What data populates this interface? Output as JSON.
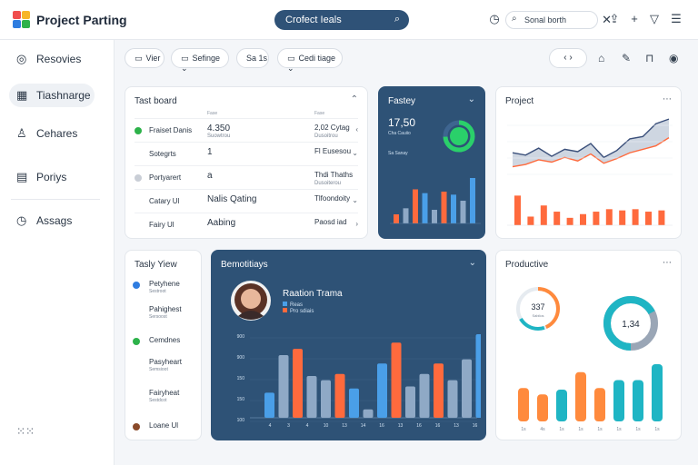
{
  "header": {
    "app_title": "Project Parting",
    "search_label": "Crofect Ieals",
    "search_pill": "Sonal borth"
  },
  "sidebar": {
    "items": [
      {
        "label": "Resovies",
        "icon": "compass-icon"
      },
      {
        "label": "Tiashnarge",
        "icon": "grid-icon"
      },
      {
        "label": "Cehares",
        "icon": "user-icon"
      },
      {
        "label": "Poriys",
        "icon": "table-icon"
      },
      {
        "label": "Assags",
        "icon": "clock-icon"
      }
    ]
  },
  "toolbar": {
    "view_label": "Vier",
    "settings_label": "Sefinge",
    "page_label": "Sa 1s",
    "code_label": "Cedi tiage",
    "nav_label": "‹ ›"
  },
  "task_board": {
    "title": "Tast board",
    "col_heads": [
      "Fase",
      "Fase"
    ],
    "rows": [
      {
        "dot": "#2db24a",
        "name": "Fraiset Danis",
        "v": "4.350",
        "v_sub": "Suowtrou",
        "r": "2,02 Cytag",
        "r_sub": "Dusoitrou",
        "end": "‹"
      },
      {
        "dot": "",
        "name": "Sotegrts",
        "v": "1",
        "v_sub": "",
        "r": "Fl Eusesou",
        "r_sub": "",
        "end": "⌄"
      },
      {
        "dot": "#c9ced6",
        "name": "Portyarert",
        "v": "a",
        "v_sub": "",
        "r": "Thdi Thaths",
        "r_sub": "Dusoiterou",
        "end": ""
      },
      {
        "dot": "",
        "name": "Catary Ul",
        "v": "Nalis Qating",
        "v_sub": "",
        "r": "Tlfoondoity",
        "r_sub": "",
        "end": "⌄"
      },
      {
        "dot": "",
        "name": "Fairy Ul",
        "v": "Aabing",
        "v_sub": "",
        "r": "Paosd iad",
        "r_sub": "",
        "end": "›"
      }
    ]
  },
  "fastey": {
    "title": "Fastey",
    "value": "17,50",
    "sub1": "Cha Cauiio",
    "sub2": "Sa Sanay",
    "bars": [
      {
        "v": 12,
        "c": "#ff6a3d"
      },
      {
        "v": 20,
        "c": "#8fa9c6"
      },
      {
        "v": 45,
        "c": "#ff6a3d"
      },
      {
        "v": 40,
        "c": "#4a9fe8"
      },
      {
        "v": 18,
        "c": "#8fa9c6"
      },
      {
        "v": 42,
        "c": "#ff6a3d"
      },
      {
        "v": 38,
        "c": "#4a9fe8"
      },
      {
        "v": 30,
        "c": "#8fa9c6"
      },
      {
        "v": 60,
        "c": "#4a9fe8"
      }
    ]
  },
  "project": {
    "title": "Project",
    "line_a": [
      34,
      30,
      42,
      28,
      40,
      36,
      50,
      26,
      38,
      58,
      62,
      84,
      92
    ],
    "line_b": [
      10,
      14,
      22,
      18,
      26,
      20,
      32,
      16,
      24,
      34,
      40,
      46,
      60
    ],
    "bars": [
      48,
      14,
      32,
      22,
      12,
      18,
      22,
      26,
      24,
      26,
      22,
      24
    ]
  },
  "task_view": {
    "title": "Tasly Yiew",
    "items": [
      {
        "label": "Petyhene",
        "sub": "Sestroot",
        "dot": "#2f7de0"
      },
      {
        "label": "Pahighest",
        "sub": "Sersoost",
        "dot": ""
      },
      {
        "label": "Cemdnes",
        "sub": "",
        "dot": "#2db24a"
      },
      {
        "label": "Pasyheart",
        "sub": "Semsioot",
        "dot": ""
      },
      {
        "label": "Fairyheat",
        "sub": "Sestdcot",
        "dot": ""
      },
      {
        "label": "Loane Ul",
        "sub": "",
        "dot": "#8a4a2a"
      }
    ]
  },
  "benchmark": {
    "title": "Bemotitiays",
    "person": "Raation Trama",
    "legend": [
      "Reas",
      "Pro sdiais"
    ],
    "yticks": [
      "900",
      "900",
      "150",
      "150",
      "100"
    ],
    "xticks": [
      "4",
      "3",
      "4",
      "10",
      "13",
      "14",
      "16",
      "13",
      "16",
      "16",
      "13",
      "16"
    ],
    "bars": [
      {
        "v": 120,
        "c": "#4a9fe8"
      },
      {
        "v": 300,
        "c": "#8fa9c6"
      },
      {
        "v": 330,
        "c": "#ff6a3d"
      },
      {
        "v": 200,
        "c": "#8fa9c6"
      },
      {
        "v": 180,
        "c": "#8fa9c6"
      },
      {
        "v": 210,
        "c": "#ff6a3d"
      },
      {
        "v": 140,
        "c": "#4a9fe8"
      },
      {
        "v": 40,
        "c": "#8fa9c6"
      },
      {
        "v": 260,
        "c": "#4a9fe8"
      },
      {
        "v": 360,
        "c": "#ff6a3d"
      },
      {
        "v": 150,
        "c": "#8fa9c6"
      },
      {
        "v": 210,
        "c": "#8fa9c6"
      },
      {
        "v": 260,
        "c": "#ff6a3d"
      },
      {
        "v": 180,
        "c": "#8fa9c6"
      },
      {
        "v": 280,
        "c": "#8fa9c6"
      },
      {
        "v": 400,
        "c": "#4a9fe8"
      }
    ]
  },
  "productive": {
    "title": "Productive",
    "ring1_value": "337",
    "ring1_sub": "Sabilos",
    "ring2_value": "1,34",
    "bars": [
      {
        "v": 42,
        "c": "#ff8a3d"
      },
      {
        "v": 34,
        "c": "#ff8a3d"
      },
      {
        "v": 40,
        "c": "#1fb5c4"
      },
      {
        "v": 62,
        "c": "#ff8a3d"
      },
      {
        "v": 42,
        "c": "#ff8a3d"
      },
      {
        "v": 52,
        "c": "#1fb5c4"
      },
      {
        "v": 52,
        "c": "#1fb5c4"
      },
      {
        "v": 72,
        "c": "#1fb5c4"
      }
    ],
    "xticks": [
      "1s",
      "4s",
      "1s",
      "1s",
      "1s",
      "1s",
      "1s",
      "1s"
    ]
  }
}
